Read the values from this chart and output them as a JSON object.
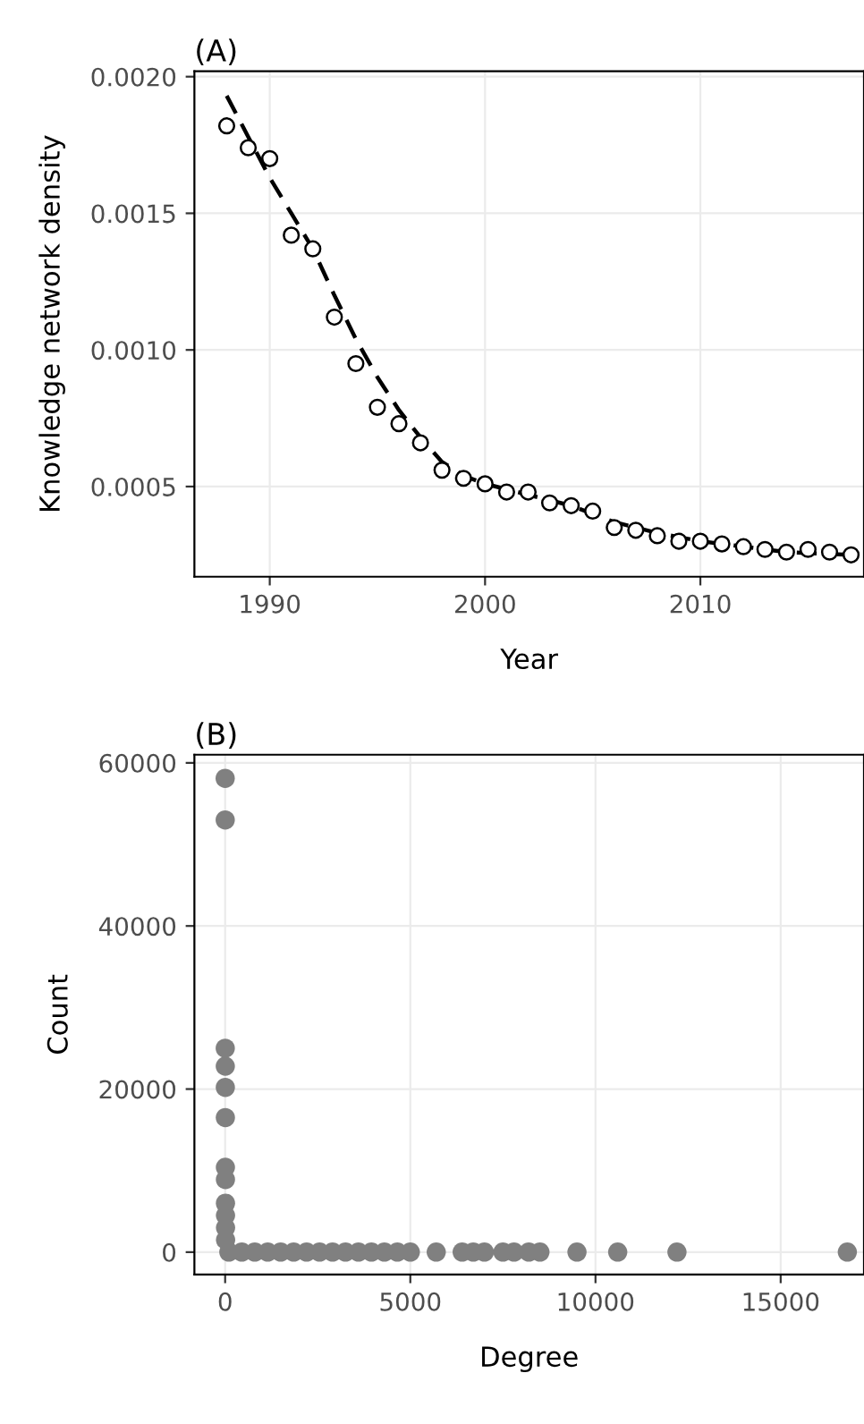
{
  "chart_data": [
    {
      "type": "scatter",
      "title": "(A)",
      "xlabel": "Year",
      "ylabel": "Knowledge network density",
      "xlim": [
        1986.5,
        2017.6
      ],
      "ylim": [
        0.00017,
        0.00202
      ],
      "xticks": [
        1990,
        2000,
        2010
      ],
      "yticks": [
        {
          "value": 0.0005,
          "label": "0.0005"
        },
        {
          "value": 0.001,
          "label": "0.0010"
        },
        {
          "value": 0.0015,
          "label": "0.0015"
        },
        {
          "value": 0.002,
          "label": "0.0020"
        }
      ],
      "grid": true,
      "legend": false,
      "series": [
        {
          "marker": "circle",
          "color": "#000000",
          "x": [
            1988,
            1989,
            1990,
            1991,
            1992,
            1993,
            1994,
            1995,
            1996,
            1997,
            1998,
            1999,
            2000,
            2001,
            2002,
            2003,
            2004,
            2005,
            2006,
            2007,
            2008,
            2009,
            2010,
            2011,
            2012,
            2013,
            2014,
            2015,
            2016,
            2017
          ],
          "values": [
            0.00182,
            0.00174,
            0.0017,
            0.00142,
            0.00137,
            0.00112,
            0.00095,
            0.00079,
            0.00073,
            0.00066,
            0.00056,
            0.00053,
            0.00051,
            0.00048,
            0.00048,
            0.00044,
            0.00043,
            0.00041,
            0.00035,
            0.00034,
            0.00032,
            0.0003,
            0.0003,
            0.00029,
            0.00028,
            0.00027,
            0.00026,
            0.00027,
            0.00026,
            0.00025
          ]
        },
        {
          "type": "line",
          "line_style": "dashed",
          "color": "#000000",
          "x": [
            1988,
            1989,
            1990,
            1991,
            1992,
            1993,
            1994,
            1995,
            1996,
            1997,
            1998,
            1999,
            2000,
            2002,
            2004,
            2006,
            2008,
            2010,
            2012,
            2014,
            2017
          ],
          "values": [
            0.00193,
            0.00178,
            0.00163,
            0.0015,
            0.00137,
            0.0012,
            0.00104,
            0.0009,
            0.00078,
            0.00068,
            0.00059,
            0.00054,
            0.00051,
            0.00047,
            0.00043,
            0.00037,
            0.00033,
            0.0003,
            0.00028,
            0.00026,
            0.00025
          ]
        }
      ]
    },
    {
      "type": "scatter",
      "title": "(B)",
      "xlabel": "Degree",
      "ylabel": "Count",
      "xlim": [
        -830,
        17250
      ],
      "ylim": [
        -2740,
        61000
      ],
      "xticks": [
        0,
        5000,
        10000,
        15000
      ],
      "yticks": [
        0,
        20000,
        40000,
        60000
      ],
      "grid": true,
      "legend": false,
      "series": [
        {
          "marker": "circle",
          "color": "#808080",
          "x": [
            1,
            2,
            3,
            4,
            5,
            6,
            7,
            8,
            9,
            10,
            11,
            12,
            100,
            450,
            800,
            1150,
            1500,
            1850,
            2200,
            2550,
            2900,
            3250,
            3600,
            3950,
            4300,
            4650,
            5000,
            5700,
            6400,
            6700,
            7000,
            7500,
            7800,
            8200,
            8500,
            9500,
            10600,
            12200,
            16800
          ],
          "values": [
            58100,
            53000,
            25000,
            22800,
            20200,
            16500,
            10400,
            8900,
            6000,
            4500,
            3000,
            1500,
            0,
            0,
            0,
            0,
            0,
            0,
            0,
            0,
            0,
            0,
            0,
            0,
            0,
            0,
            0,
            0,
            0,
            0,
            0,
            0,
            0,
            0,
            0,
            0,
            0,
            0,
            0
          ]
        }
      ]
    }
  ]
}
